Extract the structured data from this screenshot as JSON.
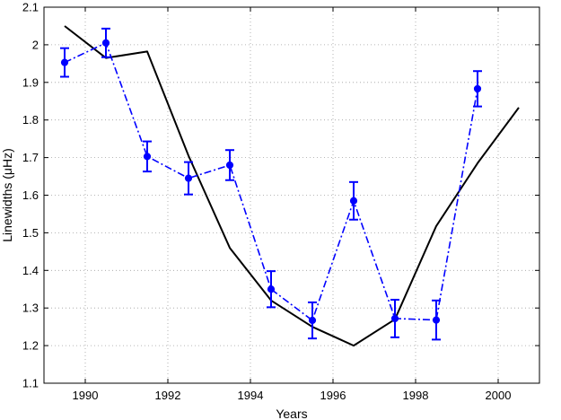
{
  "chart_data": {
    "type": "line",
    "title": "",
    "xlabel": "Years",
    "ylabel": "Linewidths (μHz)",
    "xlim": [
      1989,
      2001
    ],
    "ylim": [
      1.1,
      2.1
    ],
    "xticks": [
      1990,
      1992,
      1994,
      1996,
      1998,
      2000
    ],
    "xtick_labels": [
      "1990",
      "1992",
      "1994",
      "1996",
      "1998",
      "2000"
    ],
    "yticks": [
      1.1,
      1.2,
      1.3,
      1.4,
      1.5,
      1.6,
      1.7,
      1.8,
      1.9,
      2.0,
      2.1
    ],
    "ytick_labels": [
      "1.1",
      "1.2",
      "1.3",
      "1.4",
      "1.5",
      "1.6",
      "1.7",
      "1.8",
      "1.9",
      "2",
      "2.1"
    ],
    "grid": true,
    "series": [
      {
        "style": "dash-dot with markers and error bars",
        "color": "#0000ff",
        "x": [
          1989.5,
          1990.5,
          1991.5,
          1992.5,
          1993.5,
          1994.5,
          1995.5,
          1996.5,
          1997.5,
          1998.5,
          1999.5
        ],
        "y": [
          1.953,
          2.005,
          1.703,
          1.645,
          1.68,
          1.35,
          1.267,
          1.585,
          1.272,
          1.268,
          1.883
        ],
        "err": [
          0.038,
          0.038,
          0.04,
          0.043,
          0.04,
          0.048,
          0.048,
          0.05,
          0.05,
          0.052,
          0.047
        ]
      },
      {
        "style": "solid",
        "color": "#000000",
        "x": [
          1989.5,
          1990.5,
          1991.5,
          1992.5,
          1993.5,
          1994.5,
          1995.5,
          1996.5,
          1997.5,
          1998.5,
          1999.5,
          2000.5
        ],
        "y": [
          2.05,
          1.965,
          1.982,
          1.705,
          1.46,
          1.32,
          1.25,
          1.2,
          1.27,
          1.518,
          1.685,
          1.833
        ]
      }
    ]
  }
}
